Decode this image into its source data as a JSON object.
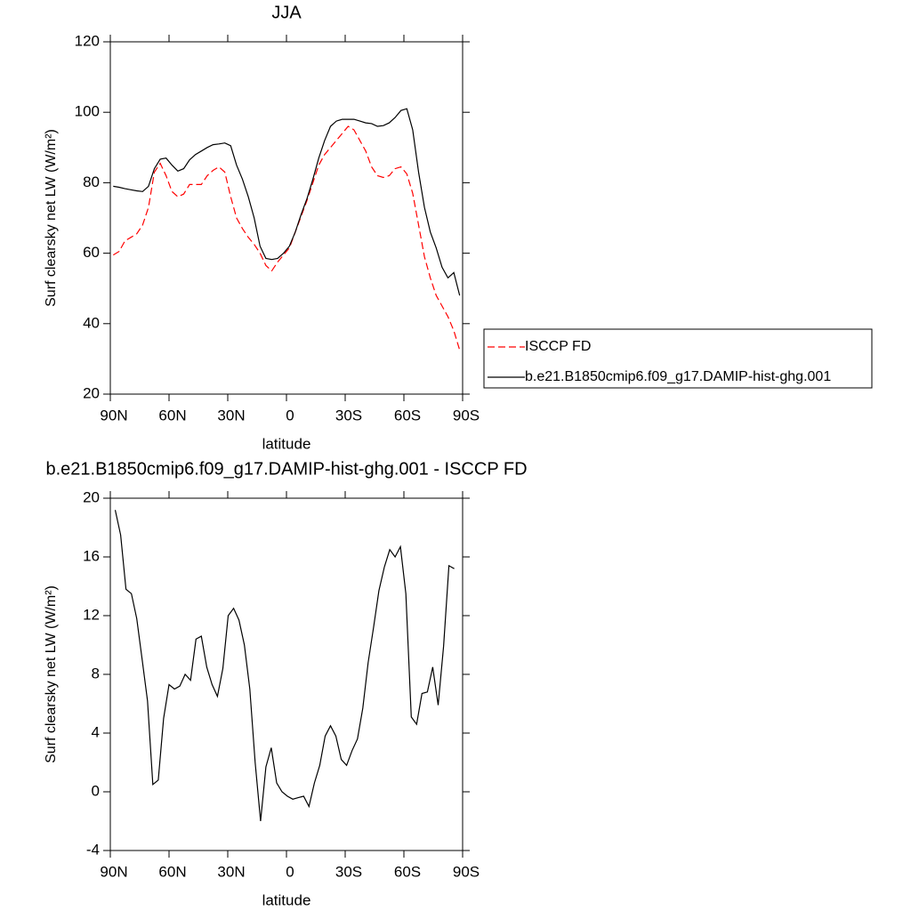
{
  "chart_data": [
    {
      "type": "line",
      "title": "JJA",
      "xlabel": "latitude",
      "ylabel": "Surf clearsky net LW (W/m²)",
      "x": [
        88.5,
        85.5,
        82.5,
        79.5,
        76.5,
        73.5,
        70.5,
        67.5,
        64.5,
        61.5,
        58.5,
        55.5,
        52.5,
        49.5,
        46.5,
        43.5,
        40.5,
        37.5,
        34.5,
        31.5,
        28.5,
        25.5,
        22.5,
        19.5,
        16.5,
        13.5,
        10.5,
        7.5,
        4.5,
        1.5,
        -1.5,
        -4.5,
        -7.5,
        -10.5,
        -13.5,
        -16.5,
        -19.5,
        -22.5,
        -25.5,
        -28.5,
        -31.5,
        -34.5,
        -37.5,
        -40.5,
        -43.5,
        -46.5,
        -49.5,
        -52.5,
        -55.5,
        -58.5,
        -61.5,
        -64.5,
        -67.5,
        -70.5,
        -73.5,
        -76.5,
        -79.5,
        -82.5,
        -85.5,
        -88.5
      ],
      "xlim": [
        90,
        -90
      ],
      "xticks": [
        {
          "value": 90,
          "label": "90N"
        },
        {
          "value": 60,
          "label": "60N"
        },
        {
          "value": 30,
          "label": "30N"
        },
        0,
        {
          "value": -30,
          "label": "30S"
        },
        {
          "value": -60,
          "label": "60S"
        },
        {
          "value": -90,
          "label": "90S"
        }
      ],
      "ylim": [
        20,
        120
      ],
      "yticks": [
        20,
        40,
        60,
        80,
        100,
        120
      ],
      "legend": "right",
      "series": [
        {
          "name": "ISCCP FD",
          "color": "#ff0000",
          "line_style": "dashed",
          "values": [
            59.5,
            60.5,
            63.5,
            64.5,
            65.5,
            68,
            73,
            83,
            85.5,
            82,
            77.5,
            76,
            76.8,
            79.5,
            79.5,
            79.5,
            82,
            83.5,
            84.5,
            83,
            76,
            70,
            67,
            64.5,
            62.5,
            60,
            56.5,
            55,
            57.5,
            59.5,
            61.5,
            66,
            70.5,
            75,
            80,
            85,
            88,
            90,
            92,
            94,
            96,
            95,
            92,
            89,
            84.5,
            82,
            81.5,
            82,
            84,
            84.5,
            82.5,
            77,
            68,
            59,
            53,
            48,
            45,
            42,
            38,
            32.5
          ]
        },
        {
          "name": "b.e21.B1850cmip6.f09_g17.DAMIP-hist-ghg.001",
          "color": "#000000",
          "line_style": "solid",
          "values": [
            79,
            78.7,
            78.3,
            78,
            77.7,
            77.5,
            79,
            84,
            86.7,
            87,
            85,
            83.3,
            84,
            86.5,
            88,
            89,
            90,
            90.8,
            91,
            91.3,
            90.5,
            85,
            81,
            76,
            70,
            62,
            58.5,
            58.2,
            58.5,
            60,
            62,
            66,
            71,
            75.5,
            81,
            87,
            92,
            96,
            97.5,
            98,
            98,
            98,
            97.5,
            97,
            96.8,
            96,
            96.2,
            97,
            98.5,
            100.5,
            101,
            95,
            83,
            73,
            66,
            61.5,
            56,
            53,
            54.5,
            48
          ]
        }
      ]
    },
    {
      "type": "line",
      "title": "b.e21.B1850cmip6.f09_g17.DAMIP-hist-ghg.001 - ISCCP FD",
      "xlabel": "latitude",
      "ylabel": "Surf clearsky net LW (W/m²)",
      "x": [
        87.5,
        84.75,
        82,
        79.25,
        76.5,
        73.75,
        71,
        68.25,
        65.5,
        62.75,
        60,
        57.25,
        54.5,
        51.75,
        49,
        46.25,
        43.5,
        40.75,
        38,
        35.25,
        32.5,
        29.75,
        27,
        24.25,
        21.5,
        18.75,
        16,
        13.25,
        10.5,
        7.75,
        5,
        2.25,
        -0.5,
        -3.25,
        -6,
        -8.75,
        -11.5,
        -14.25,
        -17,
        -19.75,
        -22.5,
        -25.25,
        -28,
        -30.75,
        -33.5,
        -36.25,
        -39,
        -41.75,
        -44.5,
        -47.25,
        -50,
        -52.75,
        -55.5,
        -58.25,
        -61,
        -63.75,
        -66.5,
        -69.25,
        -72,
        -74.75,
        -77.5,
        -80.25,
        -83,
        -85.75
      ],
      "xlim": [
        90,
        -90
      ],
      "xticks": [
        {
          "value": 90,
          "label": "90N"
        },
        {
          "value": 60,
          "label": "60N"
        },
        {
          "value": 30,
          "label": "30N"
        },
        0,
        {
          "value": -30,
          "label": "30S"
        },
        {
          "value": -60,
          "label": "60S"
        },
        {
          "value": -90,
          "label": "90S"
        }
      ],
      "ylim": [
        -4,
        20
      ],
      "yticks": [
        -4,
        0,
        4,
        8,
        12,
        16,
        20
      ],
      "color": "#000000",
      "values": [
        19.2,
        17.5,
        13.8,
        13.5,
        11.8,
        9,
        6.2,
        0.5,
        0.8,
        5,
        7.3,
        7,
        7.2,
        8,
        7.6,
        10.4,
        10.6,
        8.5,
        7.3,
        6.5,
        8.4,
        12,
        12.5,
        11.7,
        10,
        7,
        2,
        -2,
        1.7,
        3,
        0.6,
        0,
        -0.3,
        -0.5,
        -0.4,
        -0.3,
        -1,
        0.6,
        1.8,
        3.8,
        4.5,
        3.8,
        2.2,
        1.8,
        2.8,
        3.6,
        5.7,
        8.8,
        11.2,
        13.7,
        15.3,
        16.5,
        16,
        16.7,
        13.5,
        5.1,
        4.6,
        6.7,
        6.8,
        8.5,
        5.9,
        9.9,
        15.4,
        15.2
      ]
    }
  ]
}
